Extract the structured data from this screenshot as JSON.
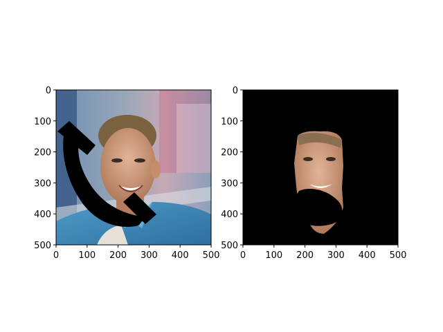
{
  "figure": {
    "panels": [
      {
        "name": "left-panel",
        "content": "photo of a man in a blue collared shirt outdoors with a black telephone-handset shape occluding part of the image"
      },
      {
        "name": "right-panel",
        "content": "segmented face region on a black background, partially occluded by a black blob"
      }
    ]
  },
  "chart_data": [
    {
      "type": "image",
      "xlim": [
        0,
        500
      ],
      "ylim": [
        500,
        0
      ],
      "x_ticks": [
        0,
        100,
        200,
        300,
        400,
        500
      ],
      "y_ticks": [
        0,
        100,
        200,
        300,
        400,
        500
      ],
      "x_tick_labels": [
        "0",
        "100",
        "200",
        "300",
        "400",
        "500"
      ],
      "y_tick_labels": [
        "0",
        "100",
        "200",
        "300",
        "400",
        "500"
      ],
      "title": "",
      "xlabel": "",
      "ylabel": ""
    },
    {
      "type": "image",
      "xlim": [
        0,
        500
      ],
      "ylim": [
        500,
        0
      ],
      "x_ticks": [
        0,
        100,
        200,
        300,
        400,
        500
      ],
      "y_ticks": [
        0,
        100,
        200,
        300,
        400,
        500
      ],
      "x_tick_labels": [
        "0",
        "100",
        "200",
        "300",
        "400",
        "500"
      ],
      "y_tick_labels": [
        "0",
        "100",
        "200",
        "300",
        "400",
        "500"
      ],
      "title": "",
      "xlabel": "",
      "ylabel": ""
    }
  ]
}
